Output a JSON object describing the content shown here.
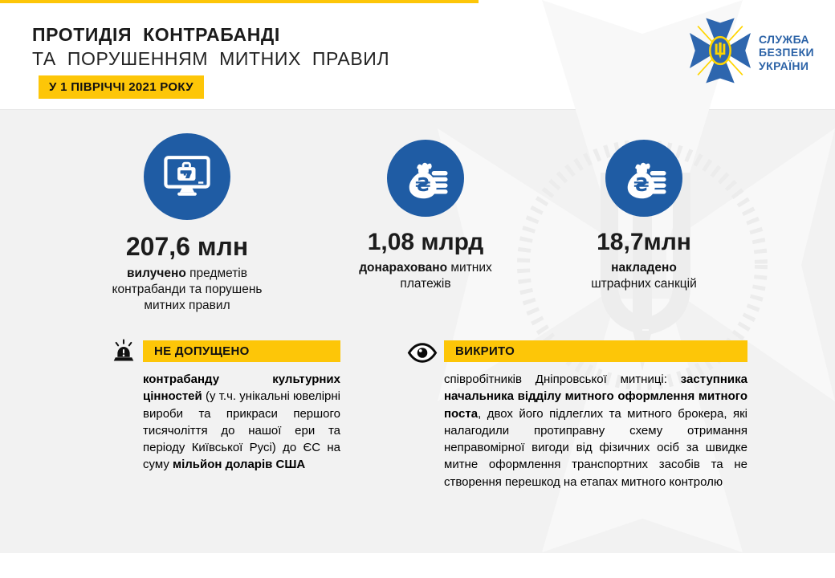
{
  "colors": {
    "accent_yellow": "#FDC608",
    "brand_blue": "#1F5CA4",
    "logo_blue": "#2E66AE",
    "logo_text_blue": "#2C63A7",
    "logo_trident_yellow": "#FFD500"
  },
  "header": {
    "title_line1": "ПРОТИДІЯ КОНТРАБАНДІ",
    "title_line2": "ТА ПОРУШЕННЯМ МИТНИХ ПРАВИЛ",
    "period_badge": "У 1 ПІВРІЧЧІ 2021 РОКУ"
  },
  "logo": {
    "line1": "СЛУЖБА",
    "line2": "БЕЗПЕКИ",
    "line3": "УКРАЇНИ"
  },
  "stats": [
    {
      "icon": "monitor-contraband-icon",
      "value": "207,6 млн",
      "label_bold": "вилучено",
      "label_rest": " предметів контрабанди та порушень митних правил"
    },
    {
      "icon": "money-bag-hryvnia-icon",
      "value": "1,08 млрд",
      "label_bold": "донараховано",
      "label_rest": " митних платежів"
    },
    {
      "icon": "money-bag-hryvnia-icon",
      "value": "18,7млн",
      "label_bold": "накладено",
      "label_rest": " штрафних санкцій"
    }
  ],
  "sections": [
    {
      "icon": "siren-icon",
      "header": "НЕ ДОПУЩЕНО",
      "body": [
        {
          "text": "контрабанду культурних цінностей",
          "bold": true
        },
        {
          "text": " (у т.ч. унікальні ювелірні вироби та прикраси першого тисячоліття до нашої ери та періоду Київської Русі) до ЄС на суму ",
          "bold": false
        },
        {
          "text": "мільйон доларів США",
          "bold": true
        }
      ]
    },
    {
      "icon": "eye-icon",
      "header": "ВИКРИТО",
      "body": [
        {
          "text": "співробітників Дніпровської митниці: ",
          "bold": false
        },
        {
          "text": "заступника начальника відділу митного оформлення митного поста",
          "bold": true
        },
        {
          "text": ", двох його підлеглих та митного брокера, які налагодили протиправну схему отримання неправомірної вигоди від фізичних осіб за швидке митне оформлення транспортних засобів та не створення перешкод на етапах митного контролю",
          "bold": false
        }
      ]
    }
  ]
}
